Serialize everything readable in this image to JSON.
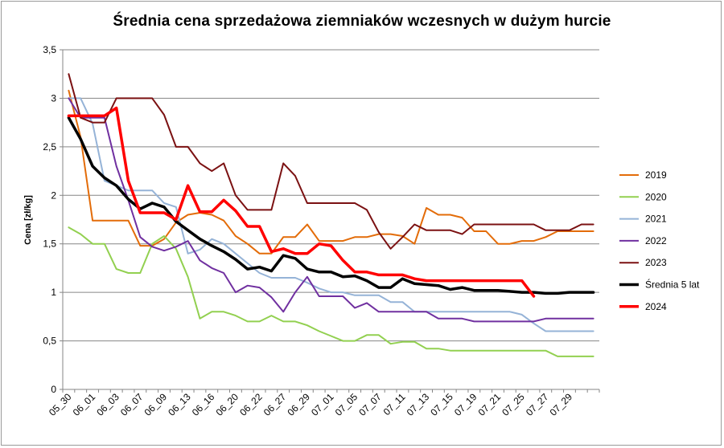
{
  "chart_data": {
    "type": "line",
    "title": "Średnia cena sprzedażowa ziemniaków  wczesnych w dużym hurcie",
    "xlabel": "",
    "ylabel": "Cena [zł/kg]",
    "ylim": [
      0,
      3.5
    ],
    "y_ticks": [
      "0",
      "0,5",
      "1",
      "1,5",
      "2",
      "2,5",
      "3",
      "3,5"
    ],
    "grid": "horizontal",
    "legend_position": "right",
    "x_tick_labels": [
      "05_30",
      "06_01",
      "06_03",
      "06_07",
      "06_09",
      "06_13",
      "06_16",
      "06_20",
      "06_22",
      "06_27",
      "06_29",
      "07_01",
      "07_05",
      "07_07",
      "07_11",
      "07_13",
      "07_15",
      "07_19",
      "07_21",
      "07_25",
      "07_27",
      "07_29"
    ],
    "x_count": 45,
    "series": [
      {
        "name": "2019",
        "color": "#e36c09",
        "width": 2,
        "values": [
          3.08,
          2.6,
          1.74,
          1.74,
          1.74,
          1.74,
          1.48,
          1.48,
          1.55,
          1.72,
          1.8,
          1.82,
          1.8,
          1.74,
          1.58,
          1.5,
          1.4,
          1.4,
          1.57,
          1.57,
          1.7,
          1.53,
          1.53,
          1.53,
          1.57,
          1.57,
          1.6,
          1.6,
          1.58,
          1.5,
          1.87,
          1.8,
          1.8,
          1.77,
          1.63,
          1.63,
          1.5,
          1.5,
          1.53,
          1.53,
          1.57,
          1.63,
          1.63,
          1.63,
          1.63
        ]
      },
      {
        "name": "2020",
        "color": "#92d050",
        "width": 2,
        "values": [
          1.67,
          1.6,
          1.5,
          1.5,
          1.24,
          1.2,
          1.2,
          1.5,
          1.58,
          1.45,
          1.16,
          0.73,
          0.8,
          0.8,
          0.76,
          0.7,
          0.7,
          0.76,
          0.7,
          0.7,
          0.66,
          0.6,
          0.55,
          0.5,
          0.5,
          0.56,
          0.56,
          0.47,
          0.49,
          0.49,
          0.42,
          0.42,
          0.4,
          0.4,
          0.4,
          0.4,
          0.4,
          0.4,
          0.4,
          0.4,
          0.4,
          0.34,
          0.34,
          0.34,
          0.34
        ]
      },
      {
        "name": "2021",
        "color": "#95b3d7",
        "width": 2,
        "values": [
          3.0,
          3.0,
          2.74,
          2.15,
          2.1,
          2.05,
          2.05,
          2.05,
          1.92,
          1.88,
          1.4,
          1.44,
          1.55,
          1.5,
          1.4,
          1.3,
          1.2,
          1.15,
          1.15,
          1.15,
          1.1,
          1.04,
          1.0,
          1.0,
          0.97,
          0.97,
          0.97,
          0.9,
          0.9,
          0.8,
          0.8,
          0.8,
          0.8,
          0.8,
          0.8,
          0.8,
          0.8,
          0.8,
          0.77,
          0.68,
          0.6,
          0.6,
          0.6,
          0.6,
          0.6
        ]
      },
      {
        "name": "2022",
        "color": "#7030a0",
        "width": 2,
        "values": [
          3.0,
          2.8,
          2.8,
          2.8,
          2.3,
          1.95,
          1.57,
          1.47,
          1.43,
          1.47,
          1.53,
          1.33,
          1.25,
          1.2,
          1.0,
          1.07,
          1.05,
          0.95,
          0.8,
          1.0,
          1.16,
          0.96,
          0.96,
          0.96,
          0.84,
          0.89,
          0.8,
          0.8,
          0.8,
          0.8,
          0.8,
          0.73,
          0.73,
          0.73,
          0.7,
          0.7,
          0.7,
          0.7,
          0.7,
          0.7,
          0.73,
          0.73,
          0.73,
          0.73,
          0.73
        ]
      },
      {
        "name": "2023",
        "color": "#7b1112",
        "width": 2,
        "values": [
          3.25,
          2.8,
          2.75,
          2.75,
          3.0,
          3.0,
          3.0,
          3.0,
          2.83,
          2.5,
          2.5,
          2.33,
          2.25,
          2.33,
          2.0,
          1.85,
          1.85,
          1.85,
          2.33,
          2.2,
          1.92,
          1.92,
          1.92,
          1.92,
          1.92,
          1.85,
          1.62,
          1.45,
          1.57,
          1.7,
          1.64,
          1.64,
          1.64,
          1.6,
          1.7,
          1.7,
          1.7,
          1.7,
          1.7,
          1.7,
          1.64,
          1.64,
          1.64,
          1.7,
          1.7
        ]
      },
      {
        "name": "Średnia 5 lat",
        "color": "#000000",
        "width": 3.5,
        "values": [
          2.8,
          2.58,
          2.3,
          2.18,
          2.1,
          1.96,
          1.86,
          1.92,
          1.88,
          1.73,
          1.64,
          1.55,
          1.48,
          1.42,
          1.34,
          1.24,
          1.26,
          1.22,
          1.38,
          1.35,
          1.24,
          1.21,
          1.21,
          1.16,
          1.17,
          1.12,
          1.05,
          1.05,
          1.14,
          1.09,
          1.08,
          1.07,
          1.03,
          1.05,
          1.02,
          1.02,
          1.02,
          1.01,
          1.0,
          1.0,
          0.99,
          0.99,
          1.0,
          1.0,
          1.0
        ]
      },
      {
        "name": "2024",
        "color": "#ff0000",
        "width": 3.5,
        "values": [
          2.82,
          2.82,
          2.82,
          2.82,
          2.9,
          2.15,
          1.82,
          1.82,
          1.82,
          1.75,
          2.1,
          1.83,
          1.83,
          1.95,
          1.84,
          1.68,
          1.68,
          1.42,
          1.45,
          1.4,
          1.4,
          1.5,
          1.48,
          1.33,
          1.21,
          1.21,
          1.18,
          1.18,
          1.18,
          1.14,
          1.12,
          1.12,
          1.12,
          1.12,
          1.12,
          1.12,
          1.12,
          1.12,
          1.12,
          0.96,
          null,
          null,
          null,
          null,
          null
        ]
      }
    ]
  }
}
